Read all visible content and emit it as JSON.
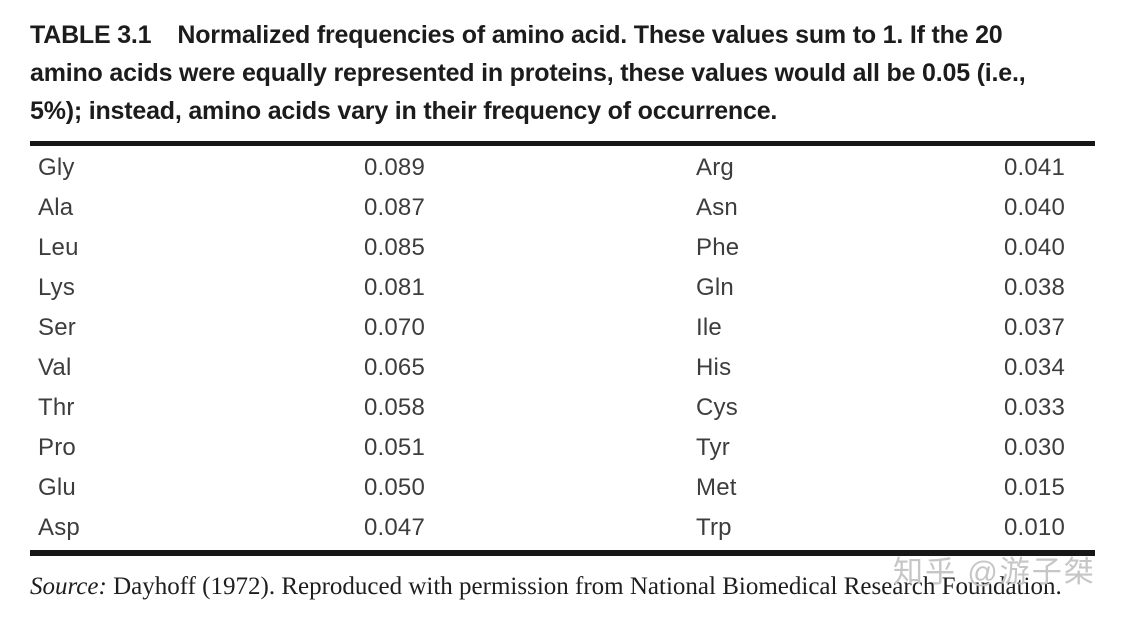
{
  "table": {
    "label": "TABLE 3.1",
    "caption": "Normalized frequencies of amino acid. These values sum to 1. If the 20 amino acids were equally represented in proteins, these values would all be 0.05 (i.e., 5%); instead, amino acids vary in their frequency of occurrence.",
    "columns": [
      "amino_acid",
      "frequency",
      "amino_acid",
      "frequency"
    ],
    "rows": [
      {
        "left_name": "Gly",
        "left_value": "0.089",
        "right_name": "Arg",
        "right_value": "0.041"
      },
      {
        "left_name": "Ala",
        "left_value": "0.087",
        "right_name": "Asn",
        "right_value": "0.040"
      },
      {
        "left_name": "Leu",
        "left_value": "0.085",
        "right_name": "Phe",
        "right_value": "0.040"
      },
      {
        "left_name": "Lys",
        "left_value": "0.081",
        "right_name": "Gln",
        "right_value": "0.038"
      },
      {
        "left_name": "Ser",
        "left_value": "0.070",
        "right_name": "Ile",
        "right_value": "0.037"
      },
      {
        "left_name": "Val",
        "left_value": "0.065",
        "right_name": "His",
        "right_value": "0.034"
      },
      {
        "left_name": "Thr",
        "left_value": "0.058",
        "right_name": "Cys",
        "right_value": "0.033"
      },
      {
        "left_name": "Pro",
        "left_value": "0.051",
        "right_name": "Tyr",
        "right_value": "0.030"
      },
      {
        "left_name": "Glu",
        "left_value": "0.050",
        "right_name": "Met",
        "right_value": "0.015"
      },
      {
        "left_name": "Asp",
        "left_value": "0.047",
        "right_name": "Trp",
        "right_value": "0.010"
      }
    ],
    "source_prefix": "Source:",
    "source_text": " Dayhoff (1972). Reproduced with permission from National Biomedical Research Foundation."
  },
  "watermark": {
    "text": "知乎 @游子桀"
  },
  "colors": {
    "title_text": "#1c1c1c",
    "body_text": "#3d3d3d",
    "rule": "#161616",
    "watermark": "#c6c6c6"
  }
}
